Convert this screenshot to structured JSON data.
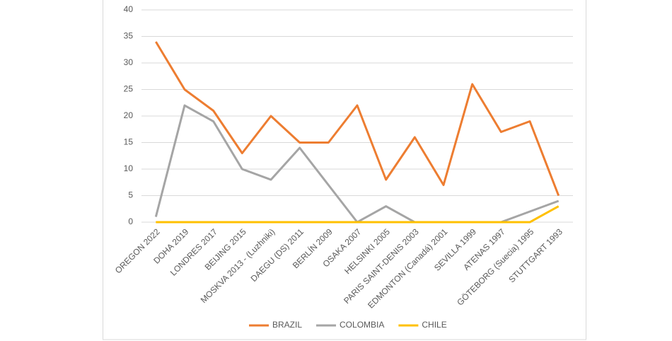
{
  "chart_data": {
    "type": "line",
    "categories": [
      "OREGON 2022",
      "DOHA 2019",
      "LONDRES 2017",
      "BEIJING 2015",
      "MOSKVA 2013 - (Luzhniki)",
      "DAEGU (DS) 2011",
      "BERLÍN 2009",
      "OSAKA 2007",
      "HELSINKI 2005",
      "PARIS SAINT-DENIS 2003",
      "EDMONTON (Canadá) 2001",
      "SEVILLA 1999",
      "ATENAS 1997",
      "GÖTEBORG (Suecia) 1995",
      "STUTTGART 1993"
    ],
    "series": [
      {
        "name": "BRAZIL",
        "color": "#ed7d31",
        "values": [
          34,
          25,
          21,
          13,
          20,
          15,
          15,
          22,
          8,
          16,
          7,
          26,
          17,
          19,
          5
        ]
      },
      {
        "name": "COLOMBIA",
        "color": "#a5a5a5",
        "values": [
          1,
          22,
          19,
          10,
          8,
          14,
          7,
          0,
          3,
          0,
          0,
          0,
          0,
          2,
          4
        ]
      },
      {
        "name": "CHILE",
        "color": "#ffc000",
        "values": [
          0,
          0,
          0,
          0,
          0,
          0,
          0,
          0,
          0,
          0,
          0,
          0,
          0,
          0,
          3
        ]
      }
    ],
    "ylim": [
      0,
      40
    ],
    "yticks": [
      0,
      5,
      10,
      15,
      20,
      25,
      30,
      35,
      40
    ],
    "grid": true,
    "legend": "bottom"
  }
}
